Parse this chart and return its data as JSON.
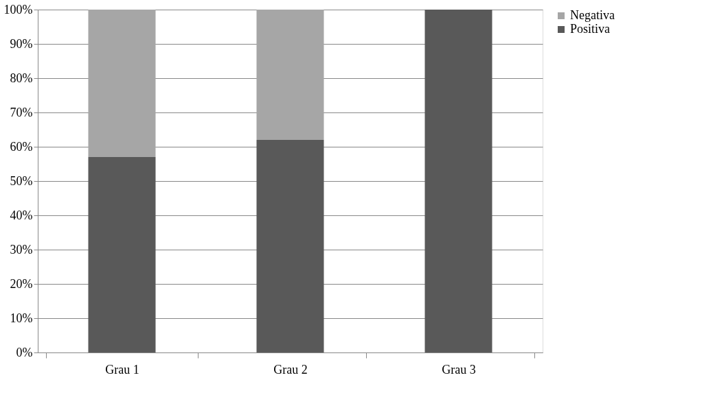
{
  "chart_data": {
    "type": "bar",
    "stacked": true,
    "categories": [
      "Grau 1",
      "Grau 2",
      "Grau 3"
    ],
    "series": [
      {
        "name": "Positiva",
        "color": "#595959",
        "values": [
          57,
          62,
          100
        ]
      },
      {
        "name": "Negativa",
        "color": "#a6a6a6",
        "values": [
          43,
          38,
          0
        ]
      }
    ],
    "ylim": [
      0,
      100
    ],
    "yticks": [
      {
        "value": 0,
        "label": "0%"
      },
      {
        "value": 10,
        "label": "10%"
      },
      {
        "value": 20,
        "label": "20%"
      },
      {
        "value": 30,
        "label": "30%"
      },
      {
        "value": 40,
        "label": "40%"
      },
      {
        "value": 50,
        "label": "50%"
      },
      {
        "value": 60,
        "label": "60%"
      },
      {
        "value": 70,
        "label": "70%"
      },
      {
        "value": 80,
        "label": "80%"
      },
      {
        "value": 90,
        "label": "90%"
      },
      {
        "value": 100,
        "label": "100%"
      }
    ],
    "grid": "y",
    "legend": "right"
  }
}
